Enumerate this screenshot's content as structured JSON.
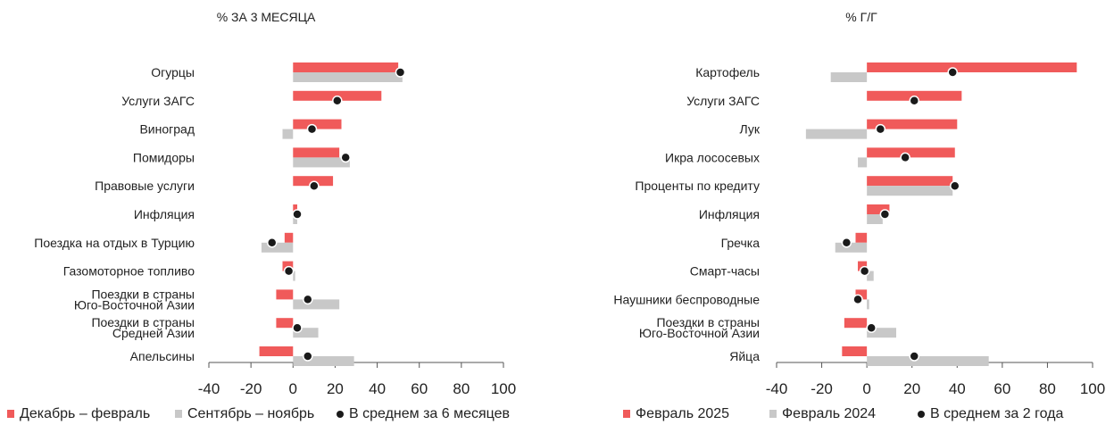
{
  "colors": {
    "series1": "#f05a5a",
    "series2": "#c8c8c8",
    "marker": "#1a1a1a",
    "axis": "#555555"
  },
  "chart_data": [
    {
      "type": "bar",
      "orientation": "horizontal",
      "title": "% ЗА 3 МЕСЯЦА",
      "categories": [
        "Огурцы",
        "Услуги ЗАГС",
        "Виноград",
        "Помидоры",
        "Правовые услуги",
        "Инфляция",
        "Поездка на отдых в Турцию",
        "Газомоторное топливо",
        "Поездки в страны\nЮго-Восточной Азии",
        "Поездки в страны\nСредней Азии",
        "Апельсины"
      ],
      "series": [
        {
          "name": "Декабрь – февраль",
          "kind": "bar",
          "color": "#f05a5a",
          "values": [
            50,
            42,
            23,
            22,
            19,
            2,
            -4,
            -5,
            -8,
            -8,
            -16
          ]
        },
        {
          "name": "Сентябрь – ноябрь",
          "kind": "bar",
          "color": "#c8c8c8",
          "values": [
            52,
            0,
            -5,
            27,
            0,
            2,
            -15,
            1,
            22,
            12,
            29
          ]
        },
        {
          "name": "В среднем за 6 месяцев",
          "kind": "marker",
          "color": "#1a1a1a",
          "values": [
            51,
            21,
            9,
            25,
            10,
            2,
            -10,
            -2,
            7,
            2,
            7
          ]
        }
      ],
      "xlim": [
        -40,
        100
      ],
      "xticks": [
        -40,
        -20,
        0,
        20,
        40,
        60,
        80,
        100
      ],
      "legend": "bottom"
    },
    {
      "type": "bar",
      "orientation": "horizontal",
      "title": "% Г/Г",
      "categories": [
        "Картофель",
        "Услуги ЗАГС",
        "Лук",
        "Икра лососевых",
        "Проценты по кредиту",
        "Инфляция",
        "Гречка",
        "Смарт-часы",
        "Наушники беспроводные",
        "Поездки в страны\nЮго-Восточной Азии",
        "Яйца"
      ],
      "series": [
        {
          "name": "Февраль 2025",
          "kind": "bar",
          "color": "#f05a5a",
          "values": [
            93,
            42,
            40,
            39,
            38,
            10,
            -5,
            -4,
            -5,
            -10,
            -11
          ]
        },
        {
          "name": "Февраль 2024",
          "kind": "bar",
          "color": "#c8c8c8",
          "values": [
            -16,
            0,
            -27,
            -4,
            38,
            7,
            -14,
            3,
            1,
            13,
            54
          ]
        },
        {
          "name": "В среднем за 2 года",
          "kind": "marker",
          "color": "#1a1a1a",
          "values": [
            38,
            21,
            6,
            17,
            39,
            8,
            -9,
            -1,
            -4,
            2,
            21
          ]
        }
      ],
      "xlim": [
        -40,
        100
      ],
      "xticks": [
        -40,
        -20,
        0,
        20,
        40,
        60,
        80,
        100
      ],
      "legend": "bottom"
    }
  ]
}
